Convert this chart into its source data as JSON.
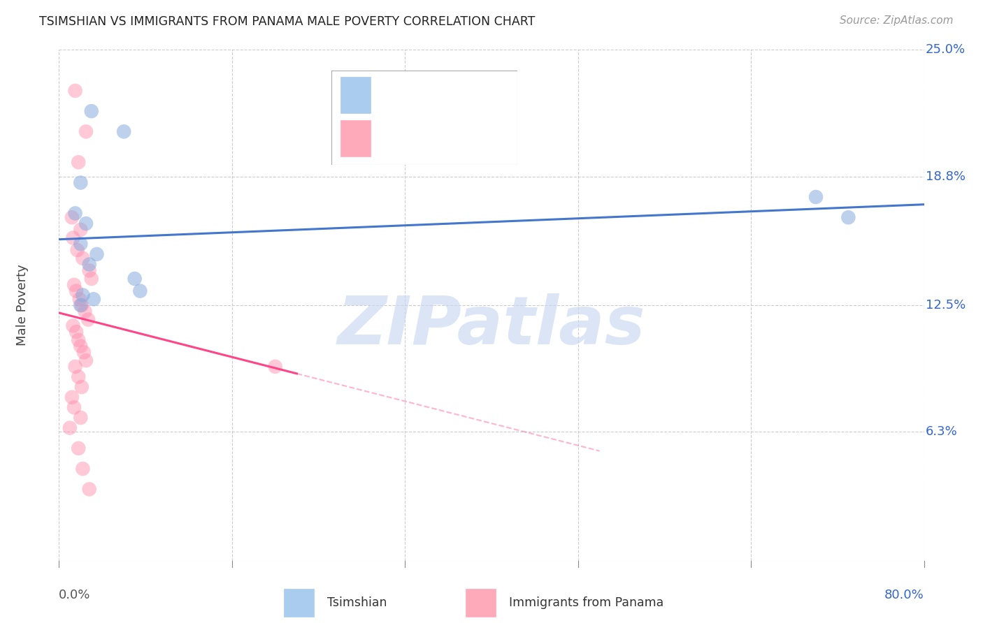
{
  "title": "TSIMSHIAN VS IMMIGRANTS FROM PANAMA MALE POVERTY CORRELATION CHART",
  "source": "Source: ZipAtlas.com",
  "ylabel": "Male Poverty",
  "xmin": 0.0,
  "xmax": 80.0,
  "ymin": 0.0,
  "ymax": 25.0,
  "ytick_values": [
    0.0,
    6.3,
    12.5,
    18.8,
    25.0
  ],
  "xtick_values": [
    0.0,
    16.0,
    32.0,
    48.0,
    64.0,
    80.0
  ],
  "blue_scatter_color": "#88AADD",
  "pink_scatter_color": "#FF88AA",
  "blue_line_color": "#4477CC",
  "pink_line_color": "#FF4488",
  "blue_legend_color": "#AACCEE",
  "pink_legend_color": "#FFAABB",
  "axis_label_color": "#3366CC",
  "grid_color": "#cccccc",
  "title_color": "#222222",
  "source_color": "#999999",
  "tsimshian_x": [
    3.0,
    6.0,
    2.0,
    1.5,
    2.5,
    2.0,
    3.5,
    2.8,
    7.0,
    7.5,
    2.2,
    3.2,
    70.0,
    73.0,
    2.0
  ],
  "tsimshian_y": [
    22.0,
    21.0,
    18.5,
    17.0,
    16.5,
    15.5,
    15.0,
    14.5,
    13.8,
    13.2,
    13.0,
    12.8,
    17.8,
    16.8,
    12.5
  ],
  "panama_x": [
    1.5,
    2.5,
    1.8,
    1.2,
    2.0,
    1.3,
    1.7,
    2.2,
    2.8,
    3.0,
    1.4,
    1.6,
    1.9,
    2.1,
    2.4,
    2.7,
    1.3,
    1.6,
    1.8,
    2.0,
    2.3,
    2.5,
    1.5,
    1.8,
    2.1,
    1.2,
    1.4,
    2.0,
    1.0,
    1.8,
    2.2,
    2.8,
    20.0
  ],
  "panama_y": [
    23.0,
    21.0,
    19.5,
    16.8,
    16.2,
    15.8,
    15.2,
    14.8,
    14.2,
    13.8,
    13.5,
    13.2,
    12.8,
    12.5,
    12.2,
    11.8,
    11.5,
    11.2,
    10.8,
    10.5,
    10.2,
    9.8,
    9.5,
    9.0,
    8.5,
    8.0,
    7.5,
    7.0,
    6.5,
    5.5,
    4.5,
    3.5,
    9.5
  ],
  "pink_solid_end_x": 22.0,
  "pink_dashed_end_x": 50.0,
  "watermark_text": "ZIPatlas",
  "watermark_color": "#C8D8F0",
  "watermark_alpha": 0.65,
  "watermark_fontsize": 70
}
